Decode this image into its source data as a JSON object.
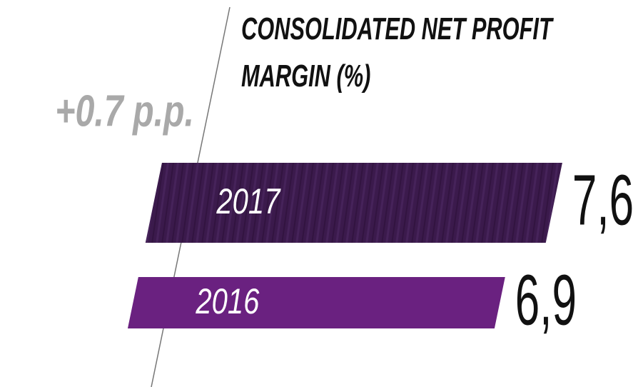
{
  "chart_data": {
    "type": "bar",
    "orientation": "horizontal",
    "title": "CONSOLIDATED NET PROFIT MARGIN (%)",
    "annotation": "+0.7 p.p.",
    "categories": [
      "2017",
      "2016"
    ],
    "values": [
      7.6,
      6.9
    ],
    "value_labels": [
      "7,6",
      "6,9"
    ],
    "colors": [
      "#3b1a4c",
      "#6a2180"
    ]
  }
}
